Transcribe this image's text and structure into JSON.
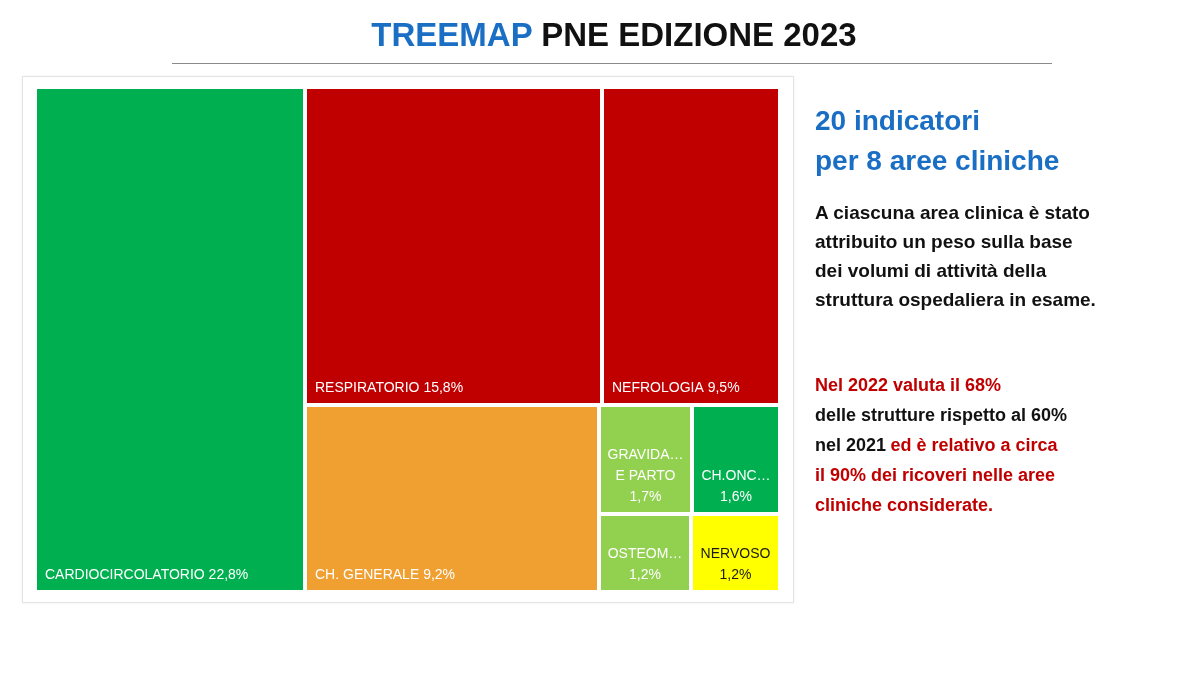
{
  "chart_data": {
    "type": "other",
    "title": "TREEMAP PNE EDIZIONE 2023",
    "categories": [
      "CARDIOCIRCOLATORIO",
      "RESPIRATORIO",
      "NEFROLOGIA",
      "CH. GENERALE",
      "GRAVIDA… E PARTO",
      "CH.ONC…",
      "OSTEOM…",
      "NERVOSO"
    ],
    "values": [
      22.8,
      15.8,
      9.5,
      9.2,
      1.7,
      1.6,
      1.2,
      1.2
    ],
    "value_labels": [
      "22,8%",
      "15,8%",
      "9,5%",
      "9,2%",
      "1,7%",
      "1,6%",
      "1,2%",
      "1,2%"
    ],
    "colors": [
      "#00b050",
      "#c00000",
      "#c00000",
      "#f09f31",
      "#92d050",
      "#00b050",
      "#92d050",
      "#ffff00"
    ],
    "annotations": [
      "20 indicatori",
      "per 8 aree cliniche",
      "A ciascuna area clinica è stato attribuito un peso sulla base dei volumi di attività della struttura ospedaliera in esame.",
      "Nel 2022 valuta il 68%",
      "delle strutture rispetto al 60%",
      "nel 2021",
      "ed è relativo a circa",
      "il 90% dei ricoveri nelle aree cliniche considerate."
    ]
  }
}
